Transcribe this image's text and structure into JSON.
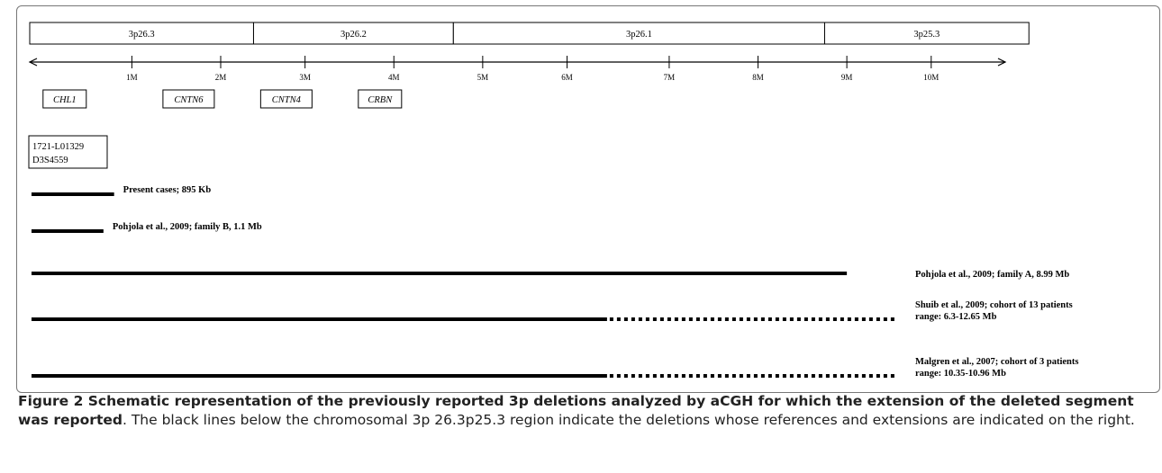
{
  "bands": [
    {
      "label": "3p26.3",
      "start": 0,
      "end": 2.52
    },
    {
      "label": "3p26.2",
      "start": 2.52,
      "end": 4.77
    },
    {
      "label": "3p26.1",
      "start": 4.77,
      "end": 8.95
    },
    {
      "label": "3p25.3",
      "start": 8.95,
      "end": 11.25
    }
  ],
  "axis": {
    "min": 0,
    "max": 11.1,
    "ticks": [
      {
        "value": 1.15,
        "label": "1M"
      },
      {
        "value": 2.15,
        "label": "2M"
      },
      {
        "value": 3.1,
        "label": "3M"
      },
      {
        "value": 4.1,
        "label": "4M"
      },
      {
        "value": 5.1,
        "label": "5M"
      },
      {
        "value": 6.05,
        "label": "6M"
      },
      {
        "value": 7.2,
        "label": "7M"
      },
      {
        "value": 8.2,
        "label": "8M"
      },
      {
        "value": 9.2,
        "label": "9M"
      },
      {
        "value": 10.15,
        "label": "10M"
      }
    ]
  },
  "genes": [
    {
      "name": "CHL1",
      "position": 0.15
    },
    {
      "name": "CNTN6",
      "position": 1.5
    },
    {
      "name": "CNTN4",
      "position": 2.6
    },
    {
      "name": "CRBN",
      "position": 3.7
    }
  ],
  "markers": [
    "1721-L01329",
    "D3S4559"
  ],
  "deletions": [
    {
      "label": [
        "Present cases; 895 Kb"
      ],
      "solid_end": 0.95,
      "dotted_end": null,
      "label_position": "inline"
    },
    {
      "label": [
        "Pohjola et al., 2009; family B, 1.1 Mb"
      ],
      "solid_end": 0.83,
      "dotted_end": null,
      "label_position": "inline"
    },
    {
      "label": [
        "Pohjola et al., 2009; family A, 8.99 Mb"
      ],
      "solid_end": 9.2,
      "dotted_end": null,
      "label_position": "right"
    },
    {
      "label": [
        "Shuib et al., 2009; cohort of 13 patients",
        "range: 6.3-12.65 Mb"
      ],
      "solid_end": 6.5,
      "dotted_end": 9.75,
      "label_position": "right"
    },
    {
      "label": [
        "Malgren et al., 2007; cohort of 3 patients",
        "range: 10.35-10.96 Mb"
      ],
      "solid_end": 6.5,
      "dotted_end": 9.75,
      "label_position": "right"
    }
  ],
  "caption": {
    "bold": "Figure 2 Schematic representation of the previously reported 3p deletions analyzed by aCGH for which the extension of the deleted segment was reported",
    "text": ". The black lines below the chromosomal 3p 26.3p25.3 region indicate the deletions whose references and extensions are indicated on the right."
  }
}
